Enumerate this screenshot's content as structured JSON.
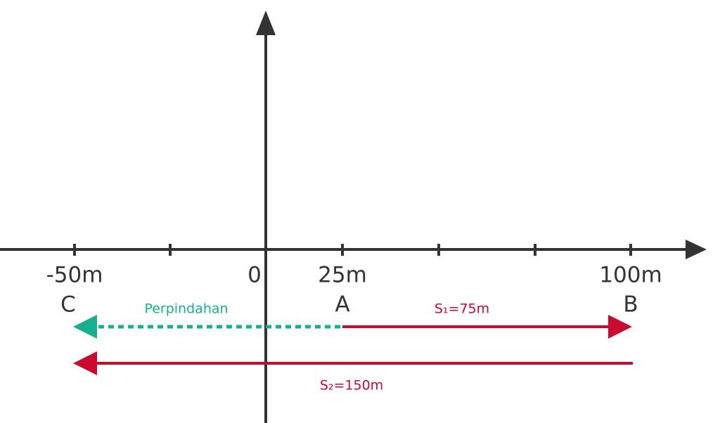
{
  "axis_labels": [
    "-50m",
    "0",
    "25m",
    "100m"
  ],
  "points": [
    {
      "label": "C"
    },
    {
      "label": "A"
    },
    {
      "label": "B"
    }
  ],
  "displacement": {
    "label": "Perpindahan"
  },
  "distances": [
    {
      "label": "S₁=75m"
    },
    {
      "label": "S₂=150m"
    }
  ]
}
